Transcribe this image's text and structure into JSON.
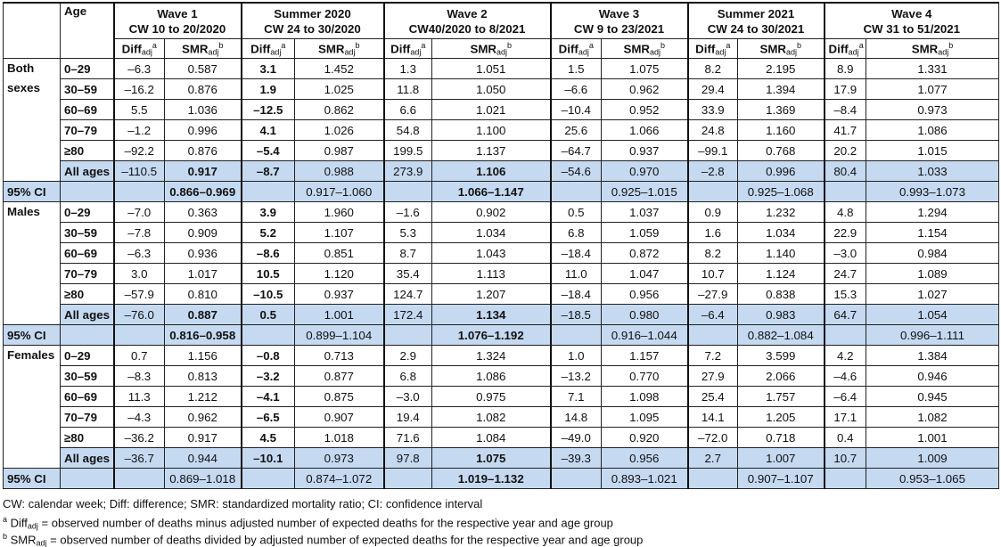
{
  "header": {
    "age_label": "Age",
    "periods": [
      {
        "name": "Wave 1",
        "range": "CW 10 to 20/2020"
      },
      {
        "name": "Summer 2020",
        "range": "CW 24 to 30/2020"
      },
      {
        "name": "Wave 2",
        "range": "CW40/2020 to 8/2021"
      },
      {
        "name": "Wave 3",
        "range": "CW 9 to 23/2021"
      },
      {
        "name": "Summer 2021",
        "range": "CW 24 to 30/2021"
      },
      {
        "name": "Wave 4",
        "range": "CW 31 to 51/2021"
      }
    ],
    "diff_label": "Diff",
    "diff_sub": "adj",
    "diff_sup": "a",
    "smr_label": "SMR",
    "smr_sub": "adj",
    "smr_sup": "b"
  },
  "ci_label": "95% CI",
  "sections": [
    {
      "group": "Both sexes",
      "rows": [
        {
          "age": "0–29",
          "values": [
            "–6.3",
            "0.587",
            "3.1",
            "1.452",
            "1.3",
            "1.051",
            "1.5",
            "1.075",
            "8.2",
            "2.195",
            "8.9",
            "1.331"
          ],
          "bold": [
            2
          ]
        },
        {
          "age": "30–59",
          "values": [
            "–16.2",
            "0.876",
            "1.9",
            "1.025",
            "11.8",
            "1.050",
            "–6.6",
            "0.962",
            "29.4",
            "1.394",
            "17.9",
            "1.077"
          ],
          "bold": [
            2
          ]
        },
        {
          "age": "60–69",
          "values": [
            "5.5",
            "1.036",
            "–12.5",
            "0.862",
            "6.6",
            "1.021",
            "–10.4",
            "0.952",
            "33.9",
            "1.369",
            "–8.4",
            "0.973"
          ],
          "bold": [
            2
          ]
        },
        {
          "age": "70–79",
          "values": [
            "–1.2",
            "0.996",
            "4.1",
            "1.026",
            "54.8",
            "1.100",
            "25.6",
            "1.066",
            "24.8",
            "1.160",
            "41.7",
            "1.086"
          ],
          "bold": [
            2
          ]
        },
        {
          "age": "≥80",
          "values": [
            "–92.2",
            "0.876",
            "–5.4",
            "0.987",
            "199.5",
            "1.137",
            "–64.7",
            "0.937",
            "–99.1",
            "0.768",
            "20.2",
            "1.015"
          ],
          "bold": [
            2
          ]
        },
        {
          "age": "All ages",
          "values": [
            "–110.5",
            "0.917",
            "–8.7",
            "0.988",
            "273.9",
            "1.106",
            "–54.6",
            "0.970",
            "–2.8",
            "0.996",
            "80.4",
            "1.033"
          ],
          "bold": [
            1,
            2,
            5
          ]
        }
      ],
      "ci": [
        "0.866–0.969",
        "0.917–1.060",
        "1.066–1.147",
        "0.925–1.015",
        "0.925–1.068",
        "0.993–1.073"
      ],
      "ci_bold": [
        0,
        2
      ]
    },
    {
      "group": "Males",
      "rows": [
        {
          "age": "0–29",
          "values": [
            "–7.0",
            "0.363",
            "3.9",
            "1.960",
            "–1.6",
            "0.902",
            "0.5",
            "1.037",
            "0.9",
            "1.232",
            "4.8",
            "1.294"
          ],
          "bold": [
            2
          ]
        },
        {
          "age": "30–59",
          "values": [
            "–7.8",
            "0.909",
            "5.2",
            "1.107",
            "5.3",
            "1.034",
            "6.8",
            "1.059",
            "1.6",
            "1.034",
            "22.9",
            "1.154"
          ],
          "bold": [
            2
          ]
        },
        {
          "age": "60–69",
          "values": [
            "–6.3",
            "0.936",
            "–8.6",
            "0.851",
            "8.7",
            "1.043",
            "–18.4",
            "0.872",
            "8.2",
            "1.140",
            "–3.0",
            "0.984"
          ],
          "bold": [
            2
          ]
        },
        {
          "age": "70–79",
          "values": [
            "3.0",
            "1.017",
            "10.5",
            "1.120",
            "35.4",
            "1.113",
            "11.0",
            "1.047",
            "10.7",
            "1.124",
            "24.7",
            "1.089"
          ],
          "bold": [
            2
          ]
        },
        {
          "age": "≥80",
          "values": [
            "–57.9",
            "0.810",
            "–10.5",
            "0.937",
            "124.7",
            "1.207",
            "–18.4",
            "0.956",
            "–27.9",
            "0.838",
            "15.3",
            "1.027"
          ],
          "bold": [
            2
          ]
        },
        {
          "age": "All ages",
          "values": [
            "–76.0",
            "0.887",
            "0.5",
            "1.001",
            "172.4",
            "1.134",
            "–18.5",
            "0.980",
            "–6.4",
            "0.983",
            "64.7",
            "1.054"
          ],
          "bold": [
            1,
            2,
            5
          ]
        }
      ],
      "ci": [
        "0.816–0.958",
        "0.899–1.104",
        "1.076–1.192",
        "0.916–1.044",
        "0.882–1.084",
        "0.996–1.111"
      ],
      "ci_bold": [
        0,
        2
      ]
    },
    {
      "group": "Females",
      "rows": [
        {
          "age": "0–29",
          "values": [
            "0.7",
            "1.156",
            "–0.8",
            "0.713",
            "2.9",
            "1.324",
            "1.0",
            "1.157",
            "7.2",
            "3.599",
            "4.2",
            "1.384"
          ],
          "bold": [
            2
          ]
        },
        {
          "age": "30–59",
          "values": [
            "–8.3",
            "0.813",
            "–3.2",
            "0.877",
            "6.8",
            "1.086",
            "–13.2",
            "0.770",
            "27.9",
            "2.066",
            "–4.6",
            "0.946"
          ],
          "bold": [
            2
          ]
        },
        {
          "age": "60–69",
          "values": [
            "11.3",
            "1.212",
            "–4.1",
            "0.875",
            "–3.0",
            "0.975",
            "7.1",
            "1.098",
            "25.4",
            "1.757",
            "–6.4",
            "0.945"
          ],
          "bold": [
            2
          ]
        },
        {
          "age": "70–79",
          "values": [
            "–4.3",
            "0.962",
            "–6.5",
            "0.907",
            "19.4",
            "1.082",
            "14.8",
            "1.095",
            "14.1",
            "1.205",
            "17.1",
            "1.082"
          ],
          "bold": [
            2
          ]
        },
        {
          "age": "≥80",
          "values": [
            "–36.2",
            "0.917",
            "4.5",
            "1.018",
            "71.6",
            "1.084",
            "–49.0",
            "0.920",
            "–72.0",
            "0.718",
            "0.4",
            "1.001"
          ],
          "bold": [
            2
          ]
        },
        {
          "age": "All ages",
          "values": [
            "–36.7",
            "0.944",
            "–10.1",
            "0.973",
            "97.8",
            "1.075",
            "–39.3",
            "0.956",
            "2.7",
            "1.007",
            "10.7",
            "1.009"
          ],
          "bold": [
            2,
            5
          ]
        }
      ],
      "ci": [
        "0.869–1.018",
        "0.874–1.072",
        "1.019–1.132",
        "0.893–1.021",
        "0.907–1.107",
        "0.953–1.065"
      ],
      "ci_bold": [
        2
      ]
    }
  ],
  "footnotes": {
    "abbrev": "CW: calendar week; Diff: difference; SMR: standardized mortality ratio; CI: confidence interval",
    "a_mark": "a",
    "a_term": "Diff",
    "a_sub": "adj",
    "a_text": " = observed number of deaths minus adjusted number of expected deaths for the respective year and age group",
    "b_mark": "b",
    "b_term": "SMR",
    "b_sub": "adj",
    "b_text": " = observed number of deaths divided by adjusted number of expected deaths for the respective year and age group"
  }
}
